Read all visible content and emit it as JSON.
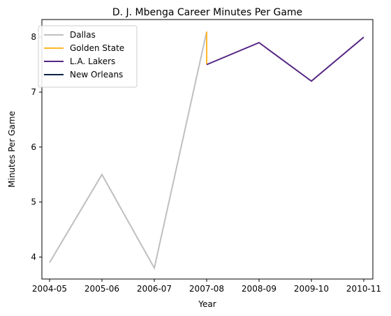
{
  "chart_data": {
    "type": "line",
    "title": "D. J. Mbenga Career Minutes Per Game",
    "xlabel": "Year",
    "ylabel": "Minutes Per Game",
    "categories": [
      "2004-05",
      "2005-06",
      "2006-07",
      "2007-08",
      "2008-09",
      "2009-10",
      "2010-11"
    ],
    "ylim": [
      3.6,
      8.32
    ],
    "yticks": [
      4,
      5,
      6,
      7,
      8
    ],
    "grid": false,
    "legend_position": "top-left",
    "series": [
      {
        "name": "Dallas",
        "color": "#bfbfbf",
        "points": [
          {
            "x": "2004-05",
            "y": 3.9
          },
          {
            "x": "2005-06",
            "y": 5.5
          },
          {
            "x": "2006-07",
            "y": 3.8
          },
          {
            "x": "2007-08",
            "y": 8.1
          }
        ]
      },
      {
        "name": "Golden State",
        "color": "#fdb927",
        "points": [
          {
            "x": "2007-08",
            "y": 8.1
          },
          {
            "x": "2007-08",
            "y": 7.5
          }
        ]
      },
      {
        "name": "L.A. Lakers",
        "color": "#552583",
        "points": [
          {
            "x": "2007-08",
            "y": 7.5
          },
          {
            "x": "2008-09",
            "y": 7.9
          },
          {
            "x": "2009-10",
            "y": 7.2
          },
          {
            "x": "2010-11",
            "y": 8.0
          }
        ]
      },
      {
        "name": "New Orleans",
        "color": "#0c2340",
        "points": []
      }
    ]
  }
}
